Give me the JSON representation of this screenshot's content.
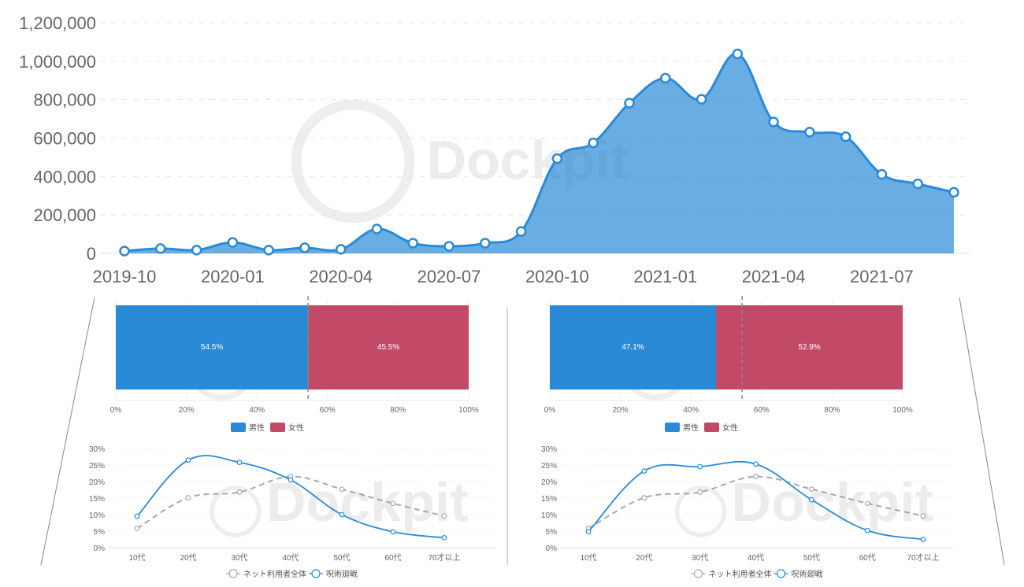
{
  "chart_data": [
    {
      "type": "area",
      "title": "",
      "xlabel": "",
      "ylabel": "",
      "ylim": [
        0,
        1200000
      ],
      "yticks": [
        "0",
        "200,000",
        "400,000",
        "600,000",
        "800,000",
        "1,000,000",
        "1,200,000"
      ],
      "xtick_labels": [
        "2019-10",
        "2020-01",
        "2020-04",
        "2020-07",
        "2020-10",
        "2021-01",
        "2021-04",
        "2021-07"
      ],
      "x": [
        "2019-10",
        "2019-11",
        "2019-12",
        "2020-01",
        "2020-02",
        "2020-03",
        "2020-04",
        "2020-05",
        "2020-06",
        "2020-07",
        "2020-08",
        "2020-09",
        "2020-10",
        "2020-11",
        "2020-12",
        "2021-01",
        "2021-02",
        "2021-03",
        "2021-04",
        "2021-05",
        "2021-06",
        "2021-07",
        "2021-08",
        "2021-09"
      ],
      "values": [
        12000,
        25000,
        17000,
        57000,
        17000,
        29000,
        21000,
        127000,
        53000,
        37000,
        53000,
        114000,
        493000,
        575000,
        782000,
        912000,
        802000,
        1038000,
        684000,
        631000,
        607000,
        411000,
        362000,
        318000
      ],
      "color": "#2b8ad6",
      "grid": true,
      "watermark": "Dockpit"
    },
    {
      "type": "bar",
      "orientation": "horizontal-stacked",
      "series": [
        {
          "name": "男性",
          "value": 54.5,
          "label": "54.5%",
          "color": "#2b8ad6"
        },
        {
          "name": "女性",
          "value": 45.5,
          "label": "45.5%",
          "color": "#c34a66"
        }
      ],
      "reference_line": 54.5,
      "xticks": [
        "0%",
        "20%",
        "40%",
        "60%",
        "80%",
        "100%"
      ],
      "xlim": [
        0,
        100
      ],
      "legend": "bottom"
    },
    {
      "type": "bar",
      "orientation": "horizontal-stacked",
      "series": [
        {
          "name": "男性",
          "value": 47.1,
          "label": "47.1%",
          "color": "#2b8ad6"
        },
        {
          "name": "女性",
          "value": 52.9,
          "label": "52.9%",
          "color": "#c34a66"
        }
      ],
      "reference_line": 54.5,
      "xticks": [
        "0%",
        "20%",
        "40%",
        "60%",
        "80%",
        "100%"
      ],
      "xlim": [
        0,
        100
      ],
      "legend": "bottom"
    },
    {
      "type": "line",
      "categories": [
        "10代",
        "20代",
        "30代",
        "40代",
        "50代",
        "60代",
        "70才以上"
      ],
      "yticks": [
        "0%",
        "5%",
        "10%",
        "15%",
        "20%",
        "25%",
        "30%"
      ],
      "ylim": [
        0,
        30
      ],
      "series": [
        {
          "name": "ネット利用者全体",
          "values": [
            5.8,
            15.1,
            16.8,
            21.5,
            17.7,
            13.4,
            9.6
          ],
          "color": "#aaaaaa",
          "dashed": true
        },
        {
          "name": "呪術廻戦",
          "values": [
            9.5,
            26.5,
            25.8,
            20.5,
            10.0,
            4.8,
            3.0
          ],
          "color": "#2b8ad6",
          "dashed": false
        }
      ],
      "legend": "bottom",
      "watermark": "Dockpit"
    },
    {
      "type": "line",
      "categories": [
        "10代",
        "20代",
        "30代",
        "40代",
        "50代",
        "60代",
        "70才以上"
      ],
      "yticks": [
        "0%",
        "5%",
        "10%",
        "15%",
        "20%",
        "25%",
        "30%"
      ],
      "ylim": [
        0,
        30
      ],
      "series": [
        {
          "name": "ネット利用者全体",
          "values": [
            5.8,
            15.1,
            16.8,
            21.5,
            17.7,
            13.4,
            9.6
          ],
          "color": "#aaaaaa",
          "dashed": true
        },
        {
          "name": "呪術廻戦",
          "values": [
            4.8,
            23.2,
            24.5,
            25.3,
            14.5,
            5.2,
            2.5
          ],
          "color": "#2b8ad6",
          "dashed": false
        }
      ],
      "legend": "bottom",
      "watermark": "Dockpit"
    }
  ]
}
